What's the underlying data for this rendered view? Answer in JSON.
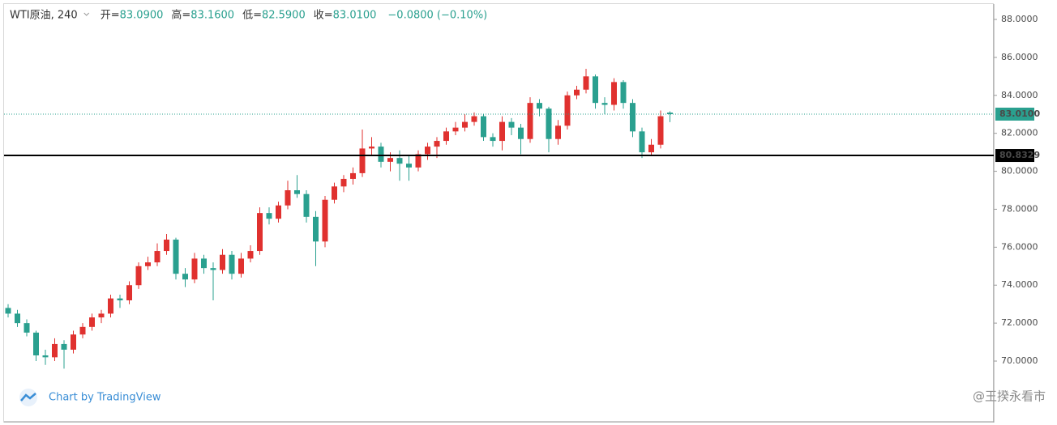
{
  "chart_data": {
    "type": "candlestick",
    "title": "WTI原油, 240",
    "header_stats": [
      {
        "label": "开=",
        "value": "83.0900"
      },
      {
        "label": "高=",
        "value": "83.1600"
      },
      {
        "label": "低=",
        "value": "82.5900"
      },
      {
        "label": "收=",
        "value": "83.0100"
      }
    ],
    "change_text": "−0.0800 (−0.10%)",
    "up_color": "#e0312f",
    "down_color": "#2aa08f",
    "open": [
      72.8,
      72.5,
      72.0,
      71.5,
      70.3,
      70.2,
      70.9,
      70.6,
      71.4,
      71.8,
      72.3,
      72.5,
      73.3,
      73.2,
      74.0,
      75.0,
      75.2,
      75.8,
      76.4,
      74.6,
      74.3,
      75.4,
      74.9,
      74.8,
      75.6,
      74.6,
      75.4,
      75.8,
      77.8,
      77.5,
      78.2,
      79.0,
      78.8,
      77.6,
      76.3,
      78.5,
      79.2,
      79.6,
      79.9,
      81.2,
      81.3,
      80.5,
      80.7,
      80.4,
      80.2,
      80.9,
      81.3,
      81.6,
      82.1,
      82.3,
      82.6,
      82.9,
      81.8,
      81.6,
      82.6,
      82.3,
      81.7,
      83.6,
      83.3,
      81.7,
      82.4,
      84.0,
      84.3,
      85.0,
      83.6,
      83.5,
      84.7,
      83.6,
      82.1,
      81.0,
      81.4,
      83.09
    ],
    "high": [
      73.0,
      72.7,
      72.2,
      71.6,
      70.6,
      71.2,
      71.1,
      71.6,
      72.0,
      72.5,
      72.7,
      73.5,
      73.5,
      74.2,
      75.2,
      75.5,
      76.2,
      76.7,
      76.5,
      74.9,
      75.7,
      75.6,
      75.2,
      75.9,
      75.8,
      75.7,
      76.1,
      78.1,
      78.1,
      78.4,
      79.5,
      79.8,
      79.0,
      77.9,
      78.7,
      79.4,
      79.8,
      80.2,
      82.2,
      81.8,
      81.5,
      81.0,
      81.1,
      80.8,
      81.1,
      81.5,
      81.8,
      82.3,
      82.6,
      83.0,
      83.1,
      83.0,
      82.0,
      82.9,
      82.8,
      82.5,
      83.9,
      83.8,
      83.4,
      82.7,
      84.2,
      84.5,
      85.4,
      85.1,
      83.9,
      84.9,
      84.8,
      83.8,
      82.3,
      81.7,
      83.2,
      83.16
    ],
    "low": [
      72.3,
      71.8,
      71.3,
      70.0,
      69.8,
      70.0,
      69.6,
      70.4,
      71.2,
      71.6,
      72.0,
      72.3,
      72.8,
      73.0,
      73.8,
      74.8,
      75.0,
      75.6,
      74.3,
      73.9,
      74.1,
      74.6,
      73.2,
      74.6,
      74.3,
      74.4,
      75.2,
      75.6,
      77.2,
      77.3,
      78.0,
      78.6,
      77.3,
      75.0,
      76.0,
      78.3,
      78.9,
      79.3,
      79.7,
      80.8,
      80.2,
      80.0,
      79.5,
      79.5,
      80.0,
      80.6,
      80.7,
      81.4,
      81.9,
      82.1,
      82.4,
      81.6,
      81.3,
      81.1,
      81.9,
      80.9,
      81.5,
      82.9,
      81.0,
      81.4,
      82.2,
      83.8,
      84.1,
      83.3,
      83.0,
      83.2,
      83.3,
      81.8,
      80.7,
      80.8,
      81.2,
      82.59
    ],
    "close": [
      72.5,
      72.0,
      71.5,
      70.3,
      70.2,
      70.9,
      70.6,
      71.4,
      71.8,
      72.3,
      72.5,
      73.3,
      73.2,
      74.0,
      75.0,
      75.2,
      75.8,
      76.4,
      74.6,
      74.3,
      75.4,
      74.9,
      74.8,
      75.6,
      74.6,
      75.4,
      75.8,
      77.8,
      77.5,
      78.2,
      79.0,
      78.8,
      77.6,
      76.3,
      78.5,
      79.2,
      79.6,
      79.9,
      81.2,
      81.3,
      80.5,
      80.7,
      80.4,
      80.2,
      80.9,
      81.3,
      81.6,
      82.1,
      82.3,
      82.6,
      82.9,
      81.8,
      81.6,
      82.6,
      82.3,
      81.7,
      83.6,
      83.3,
      81.7,
      82.4,
      84.0,
      84.3,
      85.0,
      83.6,
      83.5,
      84.7,
      83.6,
      82.1,
      81.0,
      81.4,
      82.9,
      83.01
    ],
    "ylim": [
      66.76,
      88.81
    ],
    "yticks": [
      {
        "value": 70,
        "label": "70.0000"
      },
      {
        "value": 72,
        "label": "72.0000"
      },
      {
        "value": 74,
        "label": "74.0000"
      },
      {
        "value": 76,
        "label": "76.0000"
      },
      {
        "value": 78,
        "label": "78.0000"
      },
      {
        "value": 80,
        "label": "80.0000"
      },
      {
        "value": 82,
        "label": "82.0000"
      },
      {
        "value": 84,
        "label": "84.0000"
      },
      {
        "value": 86,
        "label": "86.0000"
      },
      {
        "value": 88,
        "label": "88.0000"
      }
    ],
    "hlines": [
      {
        "value": 83.01,
        "label": "83.0100",
        "color": "#2aa08f",
        "style": "dotted"
      },
      {
        "value": 80.8329,
        "label": "80.8329",
        "color": "#000000",
        "style": "solid"
      }
    ],
    "branding": "Chart by TradingView",
    "watermark": "@王揆永看市"
  }
}
